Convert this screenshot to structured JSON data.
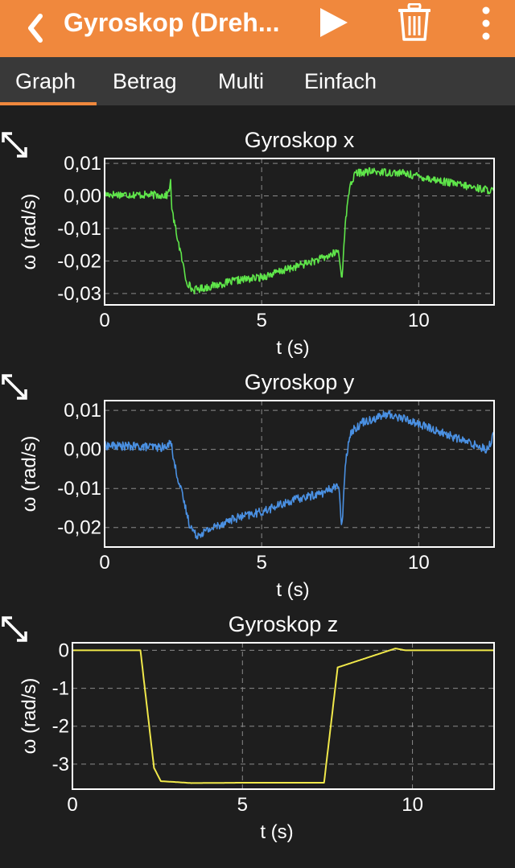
{
  "appbar": {
    "title": "Gyroskop (Dreh...",
    "back_icon": "chevron-left-icon",
    "play_icon": "play-icon",
    "delete_icon": "trash-icon",
    "more_icon": "more-vertical-icon",
    "color": "#f0883d"
  },
  "tabs": [
    {
      "label": "Graph",
      "active": true
    },
    {
      "label": "Betrag",
      "active": false
    },
    {
      "label": "Multi",
      "active": false
    },
    {
      "label": "Einfach",
      "active": false
    }
  ],
  "chart_data": [
    {
      "type": "line",
      "title": "Gyroskop x",
      "xlabel": "t (s)",
      "ylabel": "ω (rad/s)",
      "xlim": [
        0,
        12.4
      ],
      "ylim": [
        -0.0335,
        0.0115
      ],
      "xticks": [
        0,
        5,
        10
      ],
      "xtick_labels": [
        "0",
        "5",
        "10"
      ],
      "yticks": [
        0.01,
        0.0,
        -0.01,
        -0.02,
        -0.03
      ],
      "ytick_labels": [
        "0,01",
        "0,00",
        "-0,01",
        "-0,02",
        "-0,03"
      ],
      "grid": true,
      "color": "#5fe64a",
      "noise": 0.0012,
      "series": [
        {
          "values": [
            [
              0,
              0.0005
            ],
            [
              2.0,
              0.0002
            ],
            [
              2.1,
              0.004
            ],
            [
              2.15,
              -0.005
            ],
            [
              2.6,
              -0.026
            ],
            [
              2.8,
              -0.029
            ],
            [
              3.3,
              -0.028
            ],
            [
              4.2,
              -0.026
            ],
            [
              5.0,
              -0.025
            ],
            [
              6.0,
              -0.022
            ],
            [
              7.0,
              -0.019
            ],
            [
              7.45,
              -0.017
            ],
            [
              7.55,
              -0.026
            ],
            [
              7.65,
              -0.01
            ],
            [
              7.8,
              0.003
            ],
            [
              8.0,
              0.007
            ],
            [
              8.5,
              0.0075
            ],
            [
              9.5,
              0.007
            ],
            [
              10.5,
              0.005
            ],
            [
              11.5,
              0.003
            ],
            [
              12.4,
              0.0015
            ]
          ]
        }
      ]
    },
    {
      "type": "line",
      "title": "Gyroskop y",
      "xlabel": "t (s)",
      "ylabel": "ω (rad/s)",
      "xlim": [
        0,
        12.4
      ],
      "ylim": [
        -0.025,
        0.0125
      ],
      "xticks": [
        0,
        5,
        10
      ],
      "xtick_labels": [
        "0",
        "5",
        "10"
      ],
      "yticks": [
        0.01,
        0.0,
        -0.01,
        -0.02
      ],
      "ytick_labels": [
        "0,01",
        "0,00",
        "-0,01",
        "-0,02"
      ],
      "grid": true,
      "color": "#4a90e2",
      "noise": 0.0011,
      "series": [
        {
          "values": [
            [
              0,
              0.001
            ],
            [
              2.0,
              0.0005
            ],
            [
              2.1,
              0.003
            ],
            [
              2.2,
              -0.003
            ],
            [
              2.7,
              -0.019
            ],
            [
              2.9,
              -0.022
            ],
            [
              3.2,
              -0.021
            ],
            [
              4.0,
              -0.018
            ],
            [
              5.0,
              -0.016
            ],
            [
              6.0,
              -0.013
            ],
            [
              7.0,
              -0.011
            ],
            [
              7.45,
              -0.009
            ],
            [
              7.55,
              -0.021
            ],
            [
              7.65,
              -0.005
            ],
            [
              7.8,
              0.004
            ],
            [
              8.2,
              0.007
            ],
            [
              9.0,
              0.009
            ],
            [
              9.5,
              0.008
            ],
            [
              10.5,
              0.005
            ],
            [
              11.5,
              0.002
            ],
            [
              12.2,
              0.0
            ],
            [
              12.4,
              0.004
            ]
          ]
        }
      ]
    },
    {
      "type": "line",
      "title": "Gyroskop z",
      "xlabel": "t (s)",
      "ylabel": "ω (rad/s)",
      "xlim": [
        0,
        12.4
      ],
      "ylim": [
        -3.66,
        0.2
      ],
      "xticks": [
        0,
        5,
        10
      ],
      "xtick_labels": [
        "0",
        "5",
        "10"
      ],
      "yticks": [
        0,
        -1,
        -2,
        -3
      ],
      "ytick_labels": [
        "0",
        "-1",
        "-2",
        "-3"
      ],
      "grid": true,
      "color": "#f0e84a",
      "noise": 0,
      "series": [
        {
          "values": [
            [
              0,
              0.0
            ],
            [
              2.0,
              0.0
            ],
            [
              2.4,
              -3.1
            ],
            [
              2.6,
              -3.45
            ],
            [
              3.0,
              -3.47
            ],
            [
              3.5,
              -3.5
            ],
            [
              5.0,
              -3.49
            ],
            [
              7.4,
              -3.49
            ],
            [
              7.8,
              -0.45
            ],
            [
              9.5,
              0.05
            ],
            [
              9.8,
              0.0
            ],
            [
              12.4,
              0.0
            ]
          ]
        }
      ]
    }
  ]
}
